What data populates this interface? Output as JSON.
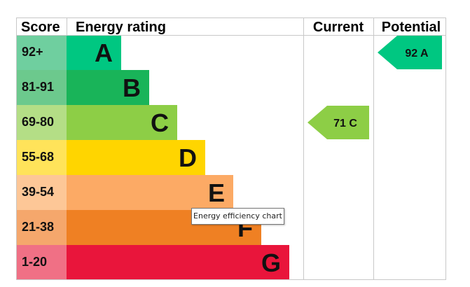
{
  "chart_data": {
    "type": "bar",
    "headers": {
      "score": "Score",
      "rating": "Energy rating",
      "current": "Current",
      "potential": "Potential"
    },
    "bands": [
      {
        "letter": "A",
        "range": "92+",
        "color": "#00c781",
        "score_color": "#6fcf9f"
      },
      {
        "letter": "B",
        "range": "81-91",
        "color": "#19b459",
        "score_color": "#6cc98d"
      },
      {
        "letter": "C",
        "range": "69-80",
        "color": "#8dce46",
        "score_color": "#b4de86"
      },
      {
        "letter": "D",
        "range": "55-68",
        "color": "#ffd500",
        "score_color": "#ffe35a"
      },
      {
        "letter": "E",
        "range": "39-54",
        "color": "#fcaa65",
        "score_color": "#fdc797"
      },
      {
        "letter": "F",
        "range": "21-38",
        "color": "#ef8023",
        "score_color": "#f5a76c"
      },
      {
        "letter": "G",
        "range": "1-20",
        "color": "#e9153b",
        "score_color": "#f07085"
      }
    ],
    "current": {
      "value": 71,
      "band": "C",
      "label": "71 C",
      "color": "#8dce46"
    },
    "potential": {
      "value": 92,
      "band": "A",
      "label": "92 A",
      "color": "#00c781"
    }
  },
  "tooltip": "Energy efficiency chart"
}
